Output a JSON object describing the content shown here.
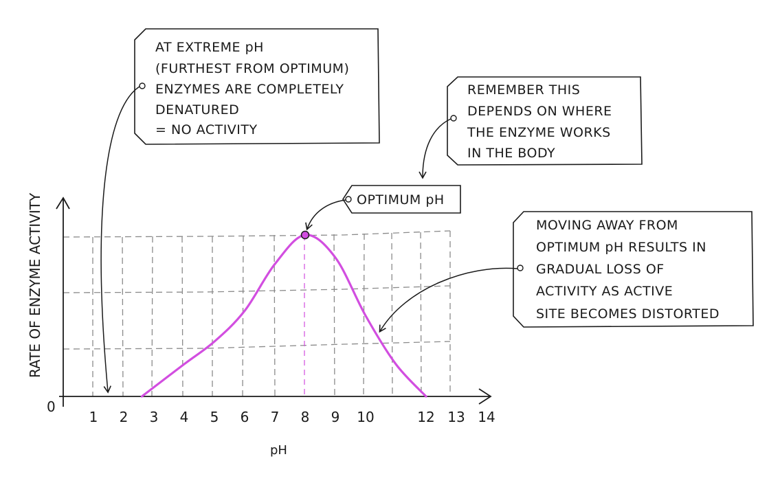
{
  "chart_data": {
    "type": "line",
    "xlabel": "pH",
    "ylabel": "RATE OF ENZYME ACTIVITY",
    "x_ticks": [
      "1",
      "2",
      "3",
      "4",
      "5",
      "6",
      "7",
      "8",
      "9",
      "10",
      "12",
      "13",
      "14"
    ],
    "origin_label": "0",
    "optimum_x": 8,
    "curve_color": "#d24ee0",
    "curve": [
      {
        "x": 2.6,
        "y": 0.0
      },
      {
        "x": 4.0,
        "y": 0.2
      },
      {
        "x": 5.0,
        "y": 0.34
      },
      {
        "x": 6.0,
        "y": 0.53
      },
      {
        "x": 7.0,
        "y": 0.82
      },
      {
        "x": 8.0,
        "y": 1.0
      },
      {
        "x": 9.0,
        "y": 0.86
      },
      {
        "x": 10.0,
        "y": 0.5
      },
      {
        "x": 11.0,
        "y": 0.2
      },
      {
        "x": 12.0,
        "y": 0.0
      }
    ]
  },
  "annotations": {
    "extreme": [
      "AT EXTREME pH",
      "(FURTHEST FROM OPTIMUM)",
      "ENZYMES ARE COMPLETELY",
      "DENATURED",
      "= NO ACTIVITY"
    ],
    "remember": [
      "REMEMBER THIS",
      "DEPENDS ON WHERE",
      "THE ENZYME WORKS",
      "IN THE BODY"
    ],
    "optimum": "OPTIMUM pH",
    "moving": [
      "MOVING AWAY FROM",
      "OPTIMUM pH RESULTS IN",
      "GRADUAL LOSS OF",
      "ACTIVITY AS ACTIVE",
      "SITE BECOMES DISTORTED"
    ]
  }
}
